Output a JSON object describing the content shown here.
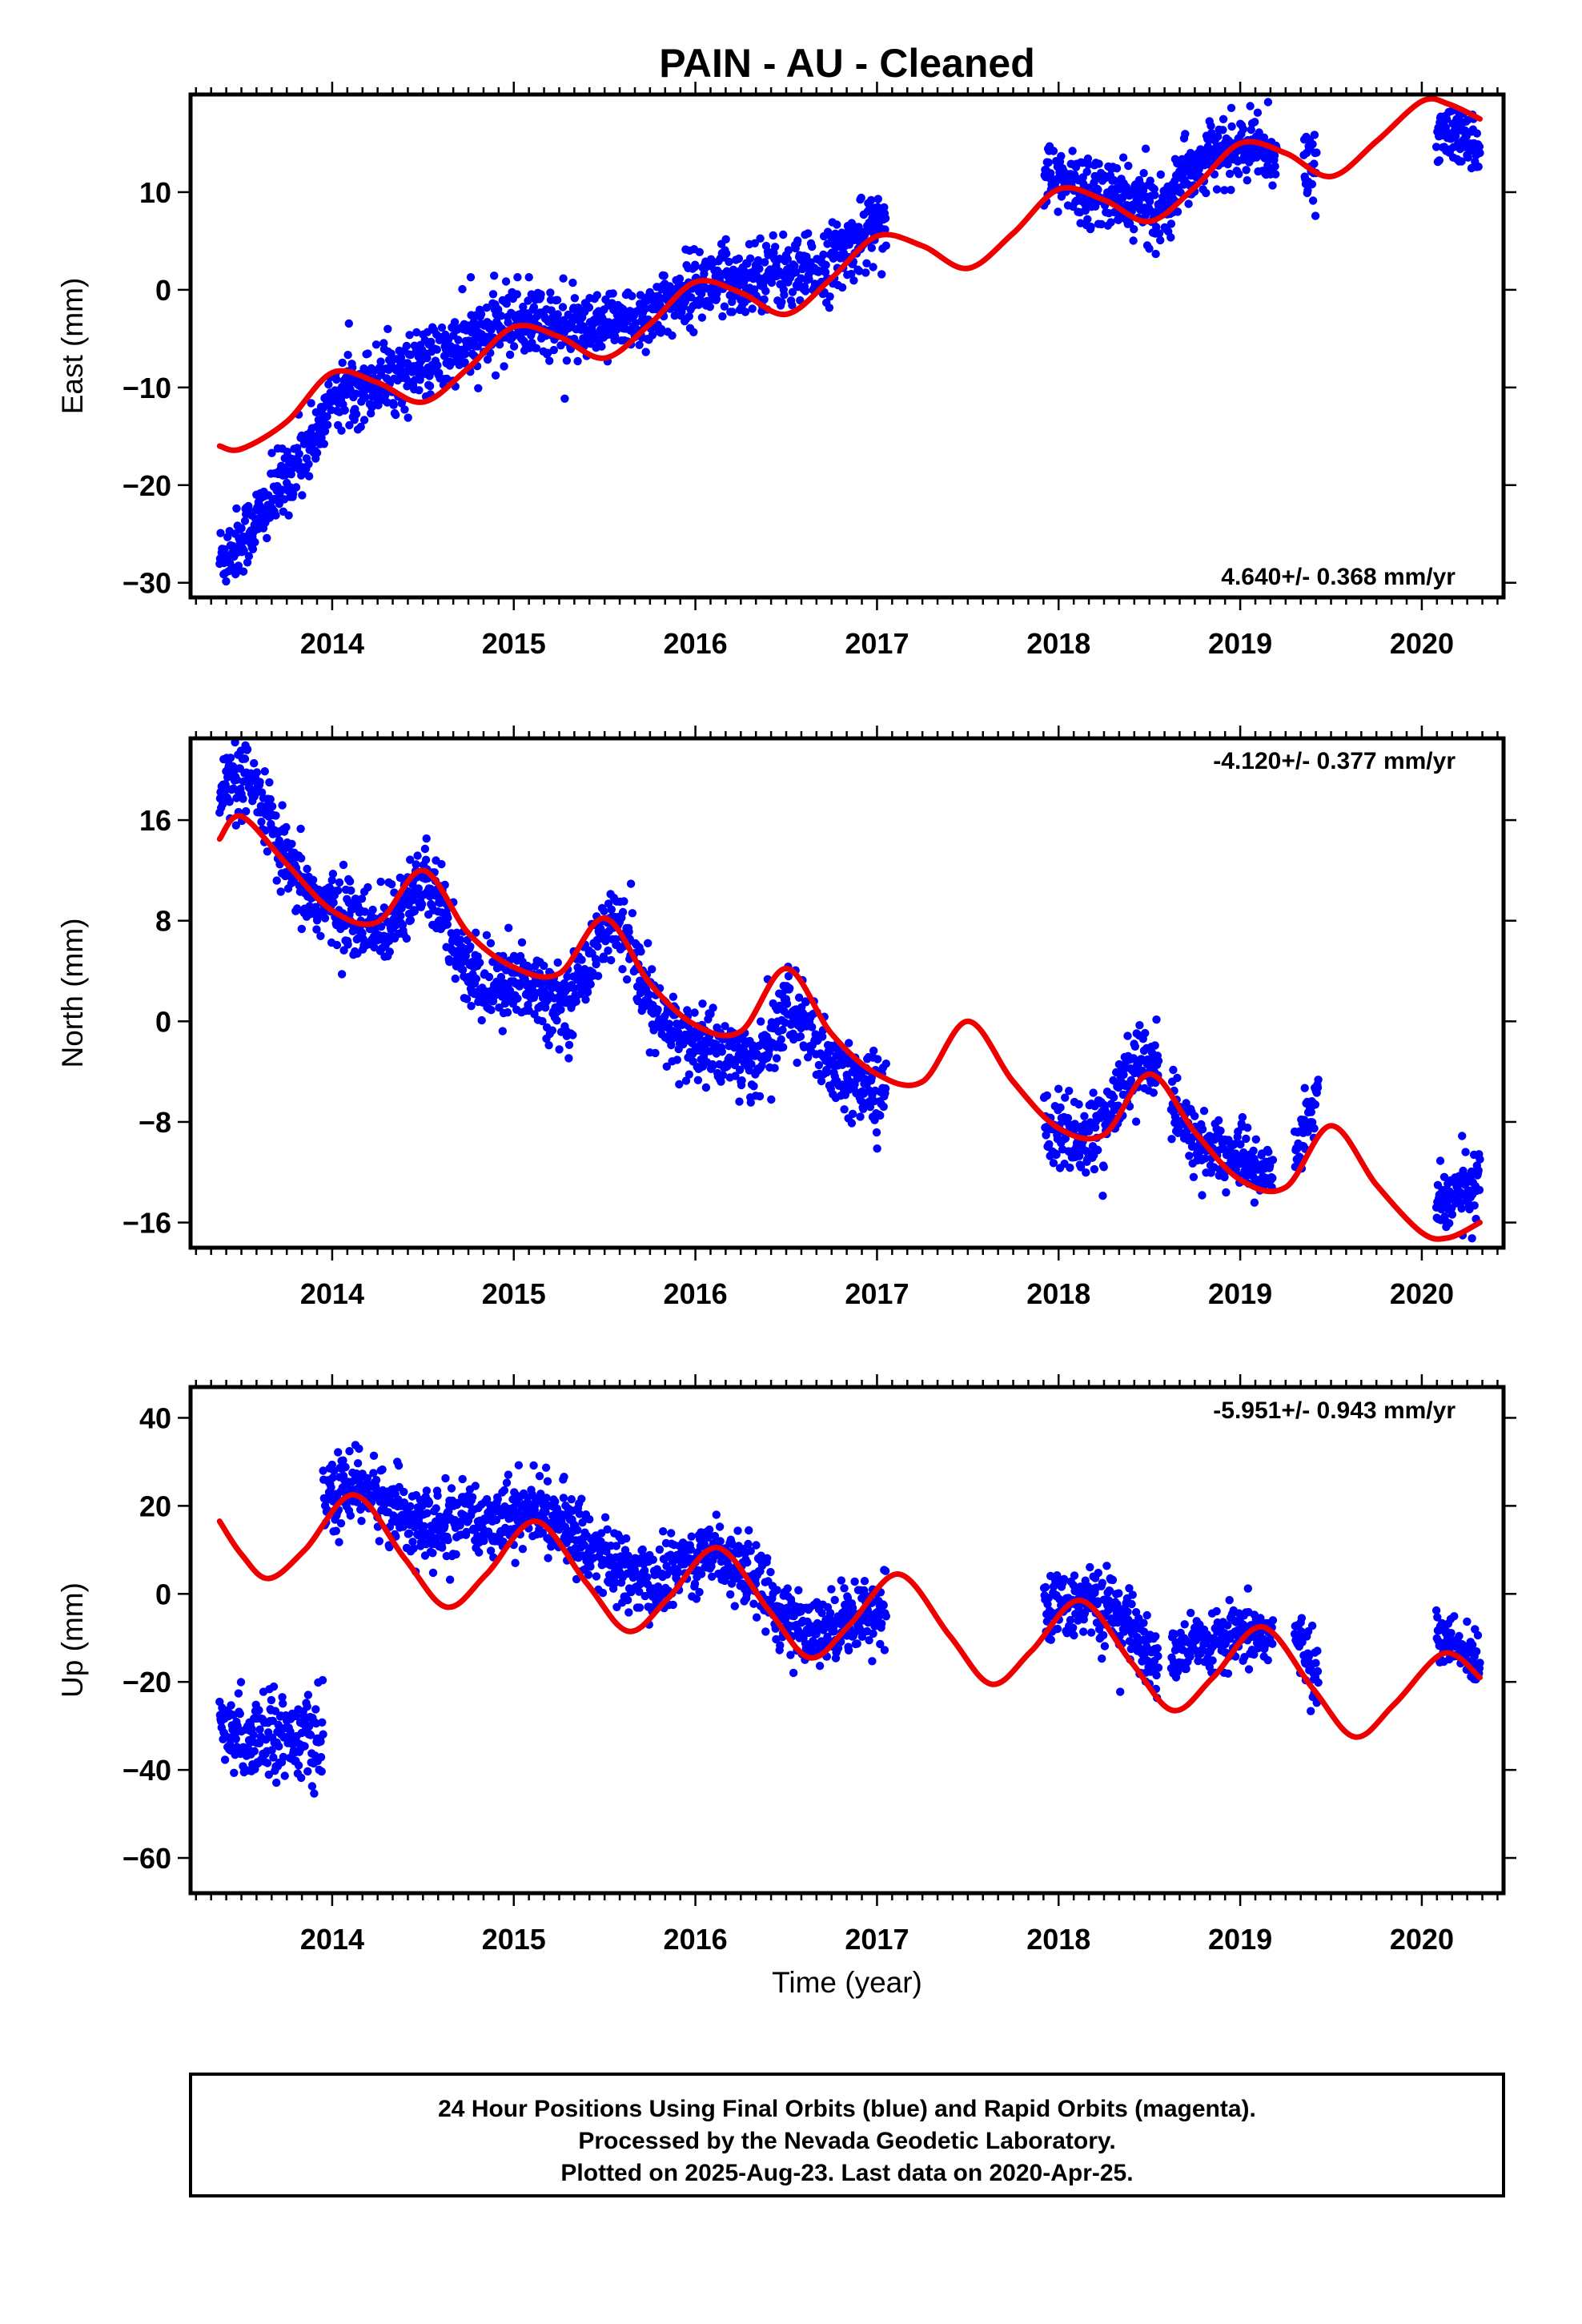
{
  "title": "PAIN  - AU - Cleaned",
  "x_axis_label": "Time (year)",
  "colors": {
    "final_orbits": "#0000ff",
    "model": "#ee0000",
    "frame": "#000000"
  },
  "footer": {
    "line1": "24 Hour Positions Using Final Orbits (blue) and Rapid Orbits (magenta).",
    "line2": "Processed by the Nevada Geodetic Laboratory.",
    "line3": "Plotted on 2025-Aug-23. Last data on 2020-Apr-25."
  },
  "chart_data": [
    {
      "type": "scatter",
      "component": "east",
      "ylabel": "East (mm)",
      "rate_label": "4.640+/- 0.368 mm/yr",
      "xlim": [
        2013.22,
        2020.45
      ],
      "ylim": [
        -31.5,
        20
      ],
      "x_ticks": [
        2014,
        2015,
        2016,
        2017,
        2018,
        2019,
        2020
      ],
      "y_ticks": [
        -30,
        -20,
        -10,
        0,
        10
      ],
      "grid": false,
      "series": [
        {
          "role": "observations",
          "color": "#0000ff",
          "segments": [
            {
              "x": [
                2013.38,
                2013.45,
                2013.55,
                2013.65,
                2013.75,
                2013.85,
                2013.95,
                2014.0,
                2014.2,
                2014.4,
                2014.6,
                2014.8,
                2015.0,
                2015.2,
                2015.4,
                2015.6,
                2015.8,
                2016.0,
                2016.2,
                2016.4,
                2016.6,
                2016.8,
                2017.0,
                2017.05
              ],
              "y": [
                -27.5,
                -26.5,
                -24.5,
                -22.0,
                -19.0,
                -16.5,
                -13.5,
                -11.0,
                -9.5,
                -8.5,
                -7.0,
                -5.0,
                -3.0,
                -3.5,
                -4.5,
                -3.5,
                -2.0,
                0.5,
                1.0,
                2.0,
                1.5,
                3.5,
                7.0,
                7.5
              ],
              "scatter": 1.8
            },
            {
              "x": [
                2017.92,
                2018.1,
                2018.3,
                2018.5,
                2018.62
              ],
              "y": [
                11.5,
                10.5,
                9.5,
                8.5,
                8.0
              ],
              "scatter": 1.8
            },
            {
              "x": [
                2018.62,
                2018.8,
                2019.0,
                2019.2
              ],
              "y": [
                11.0,
                13.5,
                14.5,
                14.0
              ],
              "scatter": 1.5
            },
            {
              "x": [
                2019.35,
                2019.42
              ],
              "y": [
                12.5,
                12.0
              ],
              "scatter": 2.0
            },
            {
              "x": [
                2020.08,
                2020.2,
                2020.32
              ],
              "y": [
                16.5,
                15.5,
                15.0
              ],
              "scatter": 1.5
            }
          ]
        },
        {
          "role": "model",
          "color": "#ee0000",
          "x": [
            2013.38,
            2013.5,
            2013.75,
            2014.0,
            2014.25,
            2014.5,
            2014.75,
            2015.0,
            2015.25,
            2015.5,
            2015.75,
            2016.0,
            2016.25,
            2016.5,
            2016.75,
            2017.0,
            2017.25,
            2017.5,
            2017.75,
            2018.0,
            2018.25,
            2018.5,
            2018.75,
            2019.0,
            2019.25,
            2019.5,
            2019.75,
            2020.0,
            2020.15,
            2020.32
          ],
          "y": [
            -16.0,
            -16.3,
            -13.5,
            -8.5,
            -9.5,
            -11.5,
            -8.0,
            -3.8,
            -4.8,
            -7.0,
            -3.5,
            0.8,
            -0.3,
            -2.5,
            1.2,
            5.5,
            4.5,
            2.2,
            5.8,
            10.3,
            9.2,
            7.0,
            10.5,
            15.0,
            14.0,
            11.6,
            15.2,
            19.3,
            19.0,
            17.5
          ]
        }
      ]
    },
    {
      "type": "scatter",
      "component": "north",
      "ylabel": "North (mm)",
      "rate_label": "-4.120+/- 0.377 mm/yr",
      "xlim": [
        2013.22,
        2020.45
      ],
      "ylim": [
        -18,
        22.5
      ],
      "x_ticks": [
        2014,
        2015,
        2016,
        2017,
        2018,
        2019,
        2020
      ],
      "y_ticks": [
        -16,
        -8,
        0,
        8,
        16
      ],
      "grid": false,
      "series": [
        {
          "role": "observations",
          "color": "#0000ff",
          "segments": [
            {
              "x": [
                2013.38,
                2013.5,
                2013.6,
                2013.7,
                2013.8,
                2013.9,
                2014.0,
                2014.1,
                2014.2,
                2014.3,
                2014.4,
                2014.5,
                2014.6,
                2014.7,
                2014.8,
                2014.9,
                2015.0,
                2015.1,
                2015.2,
                2015.3,
                2015.4,
                2015.5,
                2015.6,
                2015.7,
                2015.8,
                2015.9,
                2016.0,
                2016.1,
                2016.2,
                2016.3,
                2016.4,
                2016.5,
                2016.6,
                2016.7,
                2016.8,
                2016.9,
                2017.0,
                2017.05
              ],
              "y": [
                18.5,
                19.0,
                18.0,
                14.0,
                11.0,
                9.5,
                9.0,
                8.5,
                7.0,
                7.5,
                10.0,
                11.0,
                9.0,
                5.0,
                3.0,
                2.5,
                3.0,
                3.0,
                2.0,
                1.5,
                4.5,
                7.5,
                7.0,
                3.0,
                0.0,
                -1.0,
                -2.0,
                -2.0,
                -2.5,
                -3.5,
                -2.0,
                1.0,
                0.0,
                -3.0,
                -4.5,
                -5.0,
                -5.5,
                -6.0
              ],
              "scatter": 1.5
            },
            {
              "x": [
                2017.92,
                2018.05,
                2018.15,
                2018.25,
                2018.35,
                2018.45,
                2018.55
              ],
              "y": [
                -8.0,
                -9.0,
                -9.5,
                -8.0,
                -5.5,
                -3.0,
                -3.5
              ],
              "scatter": 1.5
            },
            {
              "x": [
                2018.62,
                2018.75,
                2018.9,
                2019.05,
                2019.18
              ],
              "y": [
                -7.0,
                -9.5,
                -10.5,
                -11.5,
                -12.0
              ],
              "scatter": 1.3
            },
            {
              "x": [
                2019.3,
                2019.38,
                2019.43
              ],
              "y": [
                -10.0,
                -7.5,
                -5.5
              ],
              "scatter": 1.3
            },
            {
              "x": [
                2020.08,
                2020.2,
                2020.32
              ],
              "y": [
                -14.5,
                -13.5,
                -13.0
              ],
              "scatter": 1.3
            }
          ]
        },
        {
          "role": "model",
          "color": "#ee0000",
          "x": [
            2013.38,
            2013.5,
            2013.75,
            2014.0,
            2014.25,
            2014.5,
            2014.75,
            2015.0,
            2015.25,
            2015.5,
            2015.75,
            2016.0,
            2016.25,
            2016.5,
            2016.75,
            2017.0,
            2017.25,
            2017.5,
            2017.75,
            2018.0,
            2018.25,
            2018.5,
            2018.75,
            2019.0,
            2019.25,
            2019.5,
            2019.75,
            2020.0,
            2020.15,
            2020.32
          ],
          "y": [
            14.5,
            16.3,
            12.5,
            8.8,
            7.9,
            12.0,
            7.0,
            4.3,
            3.8,
            8.2,
            3.0,
            -0.3,
            -0.8,
            4.2,
            -1.0,
            -4.2,
            -4.8,
            0.0,
            -4.8,
            -8.5,
            -9.0,
            -4.2,
            -8.8,
            -12.6,
            -13.2,
            -8.3,
            -13.0,
            -16.8,
            -17.2,
            -16.0
          ]
        }
      ]
    },
    {
      "type": "scatter",
      "component": "up",
      "ylabel": "Up (mm)",
      "rate_label": "-5.951+/- 0.943 mm/yr",
      "xlim": [
        2013.22,
        2020.45
      ],
      "ylim": [
        -68,
        47
      ],
      "x_ticks": [
        2014,
        2015,
        2016,
        2017,
        2018,
        2019,
        2020
      ],
      "y_ticks": [
        -60,
        -40,
        -20,
        0,
        20,
        40
      ],
      "grid": false,
      "series": [
        {
          "role": "observations",
          "color": "#0000ff",
          "segments": [
            {
              "x": [
                2013.38,
                2013.5,
                2013.62,
                2013.74,
                2013.86,
                2013.95
              ],
              "y": [
                -31.0,
                -33.0,
                -31.0,
                -32.0,
                -33.0,
                -34.0
              ],
              "scatter": 4.5
            },
            {
              "x": [
                2013.95,
                2014.1,
                2014.25,
                2014.4,
                2014.55,
                2014.7,
                2014.85,
                2015.0,
                2015.15,
                2015.3,
                2015.45,
                2015.6,
                2015.75,
                2015.9,
                2016.05,
                2016.2,
                2016.35,
                2016.5,
                2016.65,
                2016.8,
                2016.95,
                2017.05
              ],
              "y": [
                20.0,
                25.0,
                22.0,
                18.0,
                14.0,
                16.0,
                17.0,
                18.0,
                19.0,
                15.0,
                10.0,
                5.0,
                2.0,
                6.0,
                10.0,
                8.0,
                3.0,
                -6.0,
                -10.0,
                -6.0,
                -4.0,
                -2.0
              ],
              "scatter": 4.0
            },
            {
              "x": [
                2017.92,
                2018.1,
                2018.3,
                2018.45,
                2018.55
              ],
              "y": [
                -5.0,
                -1.0,
                -4.0,
                -10.0,
                -16.0
              ],
              "scatter": 4.0
            },
            {
              "x": [
                2018.62,
                2018.8,
                2019.0,
                2019.18
              ],
              "y": [
                -14.0,
                -12.0,
                -10.0,
                -9.0
              ],
              "scatter": 3.5
            },
            {
              "x": [
                2019.3,
                2019.38,
                2019.43
              ],
              "y": [
                -10.0,
                -14.0,
                -20.0
              ],
              "scatter": 3.5
            },
            {
              "x": [
                2020.08,
                2020.2,
                2020.32
              ],
              "y": [
                -9.0,
                -13.0,
                -15.0
              ],
              "scatter": 3.0
            }
          ]
        },
        {
          "role": "model",
          "color": "#ee0000",
          "x": [
            2013.38,
            2013.5,
            2013.65,
            2013.85,
            2014.12,
            2014.4,
            2014.63,
            2014.85,
            2015.12,
            2015.4,
            2015.63,
            2015.85,
            2016.12,
            2016.4,
            2016.63,
            2016.85,
            2017.12,
            2017.4,
            2017.63,
            2017.85,
            2018.12,
            2018.4,
            2018.63,
            2018.85,
            2019.12,
            2019.4,
            2019.63,
            2019.85,
            2020.12,
            2020.32
          ],
          "y": [
            16.5,
            9.0,
            3.5,
            10.0,
            22.5,
            8.0,
            -3.0,
            4.5,
            16.5,
            2.5,
            -8.5,
            -1.0,
            10.5,
            -3.5,
            -14.5,
            -7.0,
            4.5,
            -9.5,
            -20.5,
            -13.0,
            -1.5,
            -15.5,
            -26.5,
            -19.0,
            -7.5,
            -21.5,
            -32.5,
            -25.0,
            -13.5,
            -19.0
          ]
        }
      ]
    }
  ]
}
